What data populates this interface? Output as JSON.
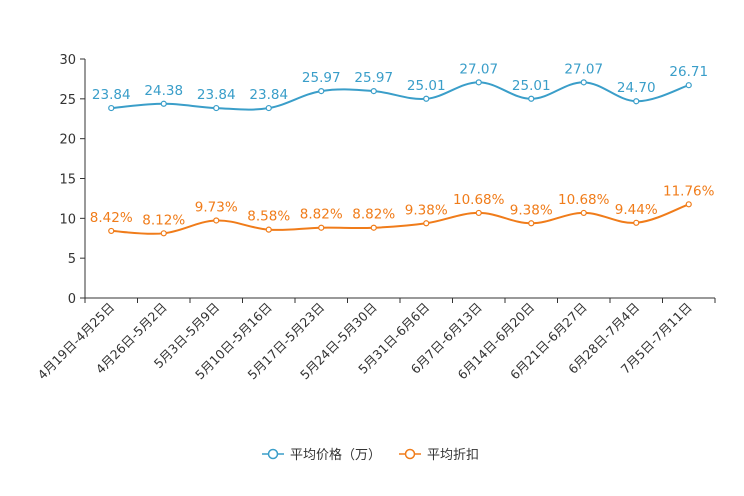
{
  "chart_data": {
    "type": "line",
    "title": "",
    "xlabel": "",
    "ylabel": "",
    "ylim": [
      0,
      30
    ],
    "yticks": [
      0,
      5,
      10,
      15,
      20,
      25,
      30
    ],
    "grid": false,
    "legend_position": "bottom-center",
    "categories": [
      "4月19日-4月25日",
      "4月26日-5月2日",
      "5月3日-5月9日",
      "5月10日-5月16日",
      "5月17日-5月23日",
      "5月24日-5月30日",
      "5月31日-6月6日",
      "6月7日-6月13日",
      "6月14日-6月20日",
      "6月21日-6月27日",
      "6月28日-7月4日",
      "7月5日-7月11日"
    ],
    "series": [
      {
        "name": "平均价格（万）",
        "color": "#3a9ec9",
        "values": [
          23.84,
          24.38,
          23.84,
          23.84,
          25.97,
          25.97,
          25.01,
          27.07,
          25.01,
          27.07,
          24.7,
          26.71
        ],
        "labels": [
          "23.84",
          "24.38",
          "23.84",
          "23.84",
          "25.97",
          "25.97",
          "25.01",
          "27.07",
          "25.01",
          "27.07",
          "24.70",
          "26.71"
        ]
      },
      {
        "name": "平均折扣",
        "color": "#f07c1a",
        "values": [
          8.42,
          8.12,
          9.73,
          8.58,
          8.82,
          8.82,
          9.38,
          10.68,
          9.38,
          10.68,
          9.44,
          11.76
        ],
        "labels": [
          "8.42%",
          "8.12%",
          "9.73%",
          "8.58%",
          "8.82%",
          "8.82%",
          "9.38%",
          "10.68%",
          "9.38%",
          "10.68%",
          "9.44%",
          "11.76%"
        ]
      }
    ]
  }
}
